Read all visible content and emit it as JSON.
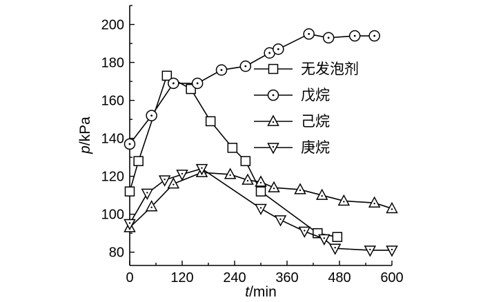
{
  "chart_data": {
    "type": "line",
    "xlabel_italic": "t",
    "xlabel_unit": "/min",
    "ylabel_italic": "p",
    "ylabel_unit": "/kPa",
    "xlim": [
      0,
      600
    ],
    "ylim": [
      73,
      210
    ],
    "x_ticks": [
      0,
      120,
      240,
      360,
      480,
      600
    ],
    "y_ticks": [
      80,
      100,
      120,
      140,
      160,
      180,
      200
    ],
    "grid": false,
    "legend_position": "right",
    "series": [
      {
        "name": "无发泡剂",
        "marker": "square",
        "x": [
          0,
          20,
          85,
          140,
          185,
          235,
          265,
          300,
          430,
          475
        ],
        "y": [
          112,
          128,
          173,
          166,
          149,
          135,
          128,
          112,
          90,
          88
        ]
      },
      {
        "name": "戊烷",
        "marker": "circle",
        "x": [
          0,
          50,
          100,
          155,
          210,
          265,
          320,
          340,
          410,
          455,
          515,
          560
        ],
        "y": [
          137,
          152,
          169,
          169,
          176,
          178,
          185,
          187,
          195,
          193,
          194,
          194
        ]
      },
      {
        "name": "己烷",
        "marker": "triangle-up",
        "x": [
          0,
          50,
          100,
          165,
          230,
          270,
          300,
          330,
          390,
          440,
          490,
          560,
          600
        ],
        "y": [
          93,
          104,
          116,
          122,
          121,
          118,
          117,
          114,
          113,
          110,
          107,
          106,
          103
        ]
      },
      {
        "name": "庚烷",
        "marker": "triangle-down",
        "x": [
          0,
          40,
          80,
          120,
          165,
          300,
          345,
          400,
          445,
          470,
          550,
          600
        ],
        "y": [
          95,
          111,
          118,
          121,
          124,
          103,
          97,
          91,
          87,
          82,
          81,
          81
        ]
      }
    ]
  }
}
